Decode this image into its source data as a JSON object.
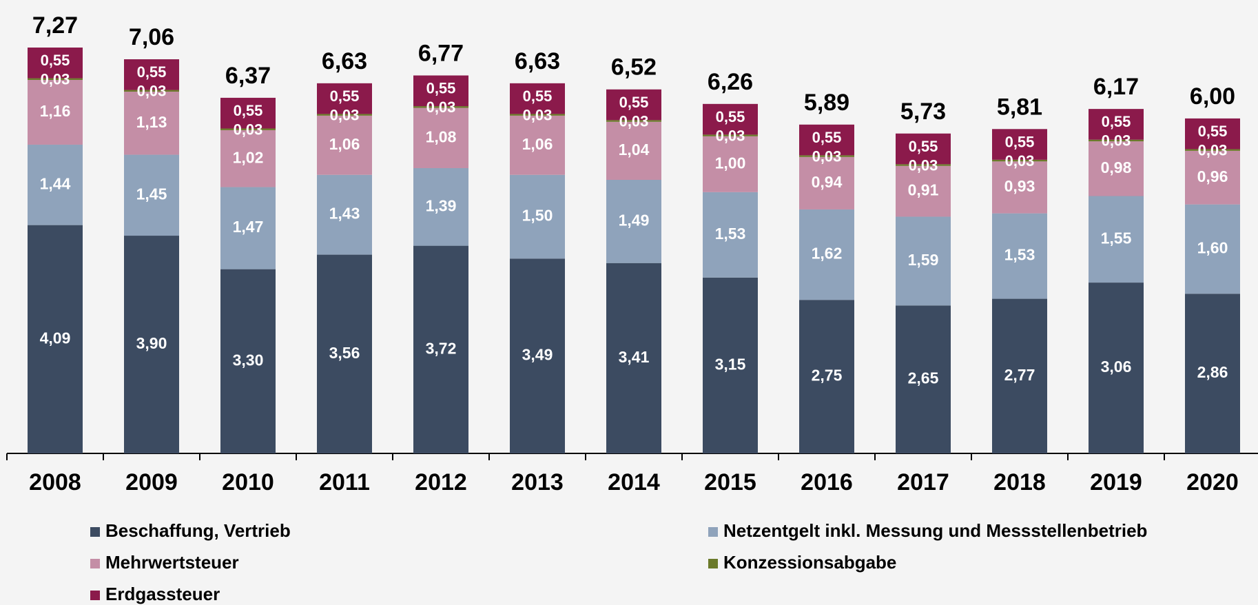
{
  "chart_data": {
    "type": "stacked_bar",
    "categories": [
      "2008",
      "2009",
      "2010",
      "2011",
      "2012",
      "2013",
      "2014",
      "2015",
      "2016",
      "2017",
      "2018",
      "2019",
      "2020"
    ],
    "series": [
      {
        "name": "Beschaffung, Vertrieb",
        "color": "#3c4b61",
        "values": [
          4.09,
          3.9,
          3.3,
          3.56,
          3.72,
          3.49,
          3.41,
          3.15,
          2.75,
          2.65,
          2.77,
          3.06,
          2.86
        ],
        "value_labels": [
          "4,09",
          "3,90",
          "3,30",
          "3,56",
          "3,72",
          "3,49",
          "3,41",
          "3,15",
          "2,75",
          "2,65",
          "2,77",
          "3,06",
          "2,86"
        ]
      },
      {
        "name": "Netzentgelt inkl. Messung und Messstellenbetrieb",
        "color": "#8fa3bb",
        "values": [
          1.44,
          1.45,
          1.47,
          1.43,
          1.39,
          1.5,
          1.49,
          1.53,
          1.62,
          1.59,
          1.53,
          1.55,
          1.6
        ],
        "value_labels": [
          "1,44",
          "1,45",
          "1,47",
          "1,43",
          "1,39",
          "1,50",
          "1,49",
          "1,53",
          "1,62",
          "1,59",
          "1,53",
          "1,55",
          "1,60"
        ]
      },
      {
        "name": "Mehrwertsteuer",
        "color": "#c48ea6",
        "values": [
          1.16,
          1.13,
          1.02,
          1.06,
          1.08,
          1.06,
          1.04,
          1.0,
          0.94,
          0.91,
          0.93,
          0.98,
          0.96
        ],
        "value_labels": [
          "1,16",
          "1,13",
          "1,02",
          "1,06",
          "1,08",
          "1,06",
          "1,04",
          "1,00",
          "0,94",
          "0,91",
          "0,93",
          "0,98",
          "0,96"
        ]
      },
      {
        "name": "Konzessionsabgabe",
        "color": "#6b7a2a",
        "values": [
          0.03,
          0.03,
          0.03,
          0.03,
          0.03,
          0.03,
          0.03,
          0.03,
          0.03,
          0.03,
          0.03,
          0.03,
          0.03
        ],
        "value_labels": [
          "0,03",
          "0,03",
          "0,03",
          "0,03",
          "0,03",
          "0,03",
          "0,03",
          "0,03",
          "0,03",
          "0,03",
          "0,03",
          "0,03",
          "0,03"
        ]
      },
      {
        "name": "Erdgassteuer",
        "color": "#8b1a4b",
        "values": [
          0.55,
          0.55,
          0.55,
          0.55,
          0.55,
          0.55,
          0.55,
          0.55,
          0.55,
          0.55,
          0.55,
          0.55,
          0.55
        ],
        "value_labels": [
          "0,55",
          "0,55",
          "0,55",
          "0,55",
          "0,55",
          "0,55",
          "0,55",
          "0,55",
          "0,55",
          "0,55",
          "0,55",
          "0,55",
          "0,55"
        ]
      }
    ],
    "totals": [
      7.27,
      7.06,
      6.37,
      6.63,
      6.77,
      6.63,
      6.52,
      6.26,
      5.89,
      5.73,
      5.81,
      6.17,
      6.0
    ],
    "total_labels": [
      "7,27",
      "7,06",
      "6,37",
      "6,63",
      "6,77",
      "6,63",
      "6,52",
      "6,26",
      "5,89",
      "5,73",
      "5,81",
      "6,17",
      "6,00"
    ]
  }
}
